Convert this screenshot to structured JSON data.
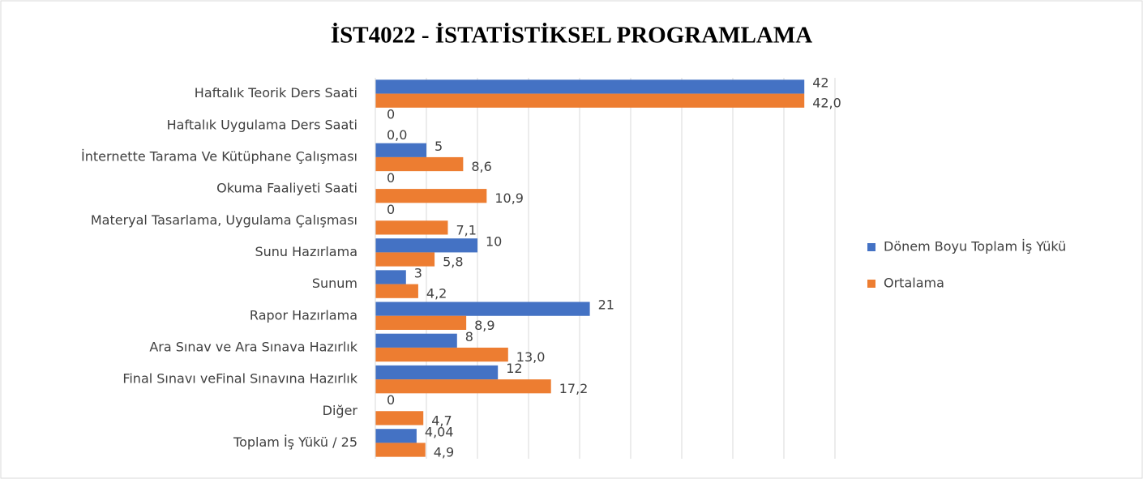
{
  "chart_data": {
    "type": "bar",
    "orientation": "horizontal",
    "title": "İST4022 - İSTATİSTİKSEL PROGRAMLAMA",
    "categories": [
      "Haftalık Teorik Ders Saati",
      "Haftalık Uygulama Ders Saati",
      "İnternette Tarama Ve Kütüphane Çalışması",
      "Okuma Faaliyeti Saati",
      "Materyal Tasarlama, Uygulama Çalışması",
      "Sunu Hazırlama",
      "Sunum",
      "Rapor Hazırlama",
      "Ara Sınav ve Ara Sınava Hazırlık",
      "Final Sınavı veFinal Sınavına Hazırlık",
      "Diğer",
      "Toplam İş Yükü / 25"
    ],
    "series": [
      {
        "name": "Dönem Boyu Toplam İş Yükü",
        "color": "#4472c4",
        "values": [
          42,
          0,
          5,
          0,
          0,
          10,
          3,
          21,
          8,
          12,
          0,
          4.04
        ],
        "value_labels": [
          "42",
          "0",
          "5",
          "0",
          "0",
          "10",
          "3",
          "21",
          "8",
          "12",
          "0",
          "4,04"
        ]
      },
      {
        "name": "Ortalama",
        "color": "#ed7d31",
        "values": [
          42.0,
          0.0,
          8.6,
          10.9,
          7.1,
          5.8,
          4.2,
          8.9,
          13.0,
          17.2,
          4.7,
          4.9
        ],
        "value_labels": [
          "42,0",
          "0,0",
          "8,6",
          "10,9",
          "7,1",
          "5,8",
          "4,2",
          "8,9",
          "13,0",
          "17,2",
          "4,7",
          "4,9"
        ]
      }
    ],
    "xlim": [
      0,
      45
    ],
    "xticks": [
      0,
      5,
      10,
      15,
      20,
      25,
      30,
      35,
      40,
      45
    ],
    "grid": true,
    "legend": "right"
  }
}
